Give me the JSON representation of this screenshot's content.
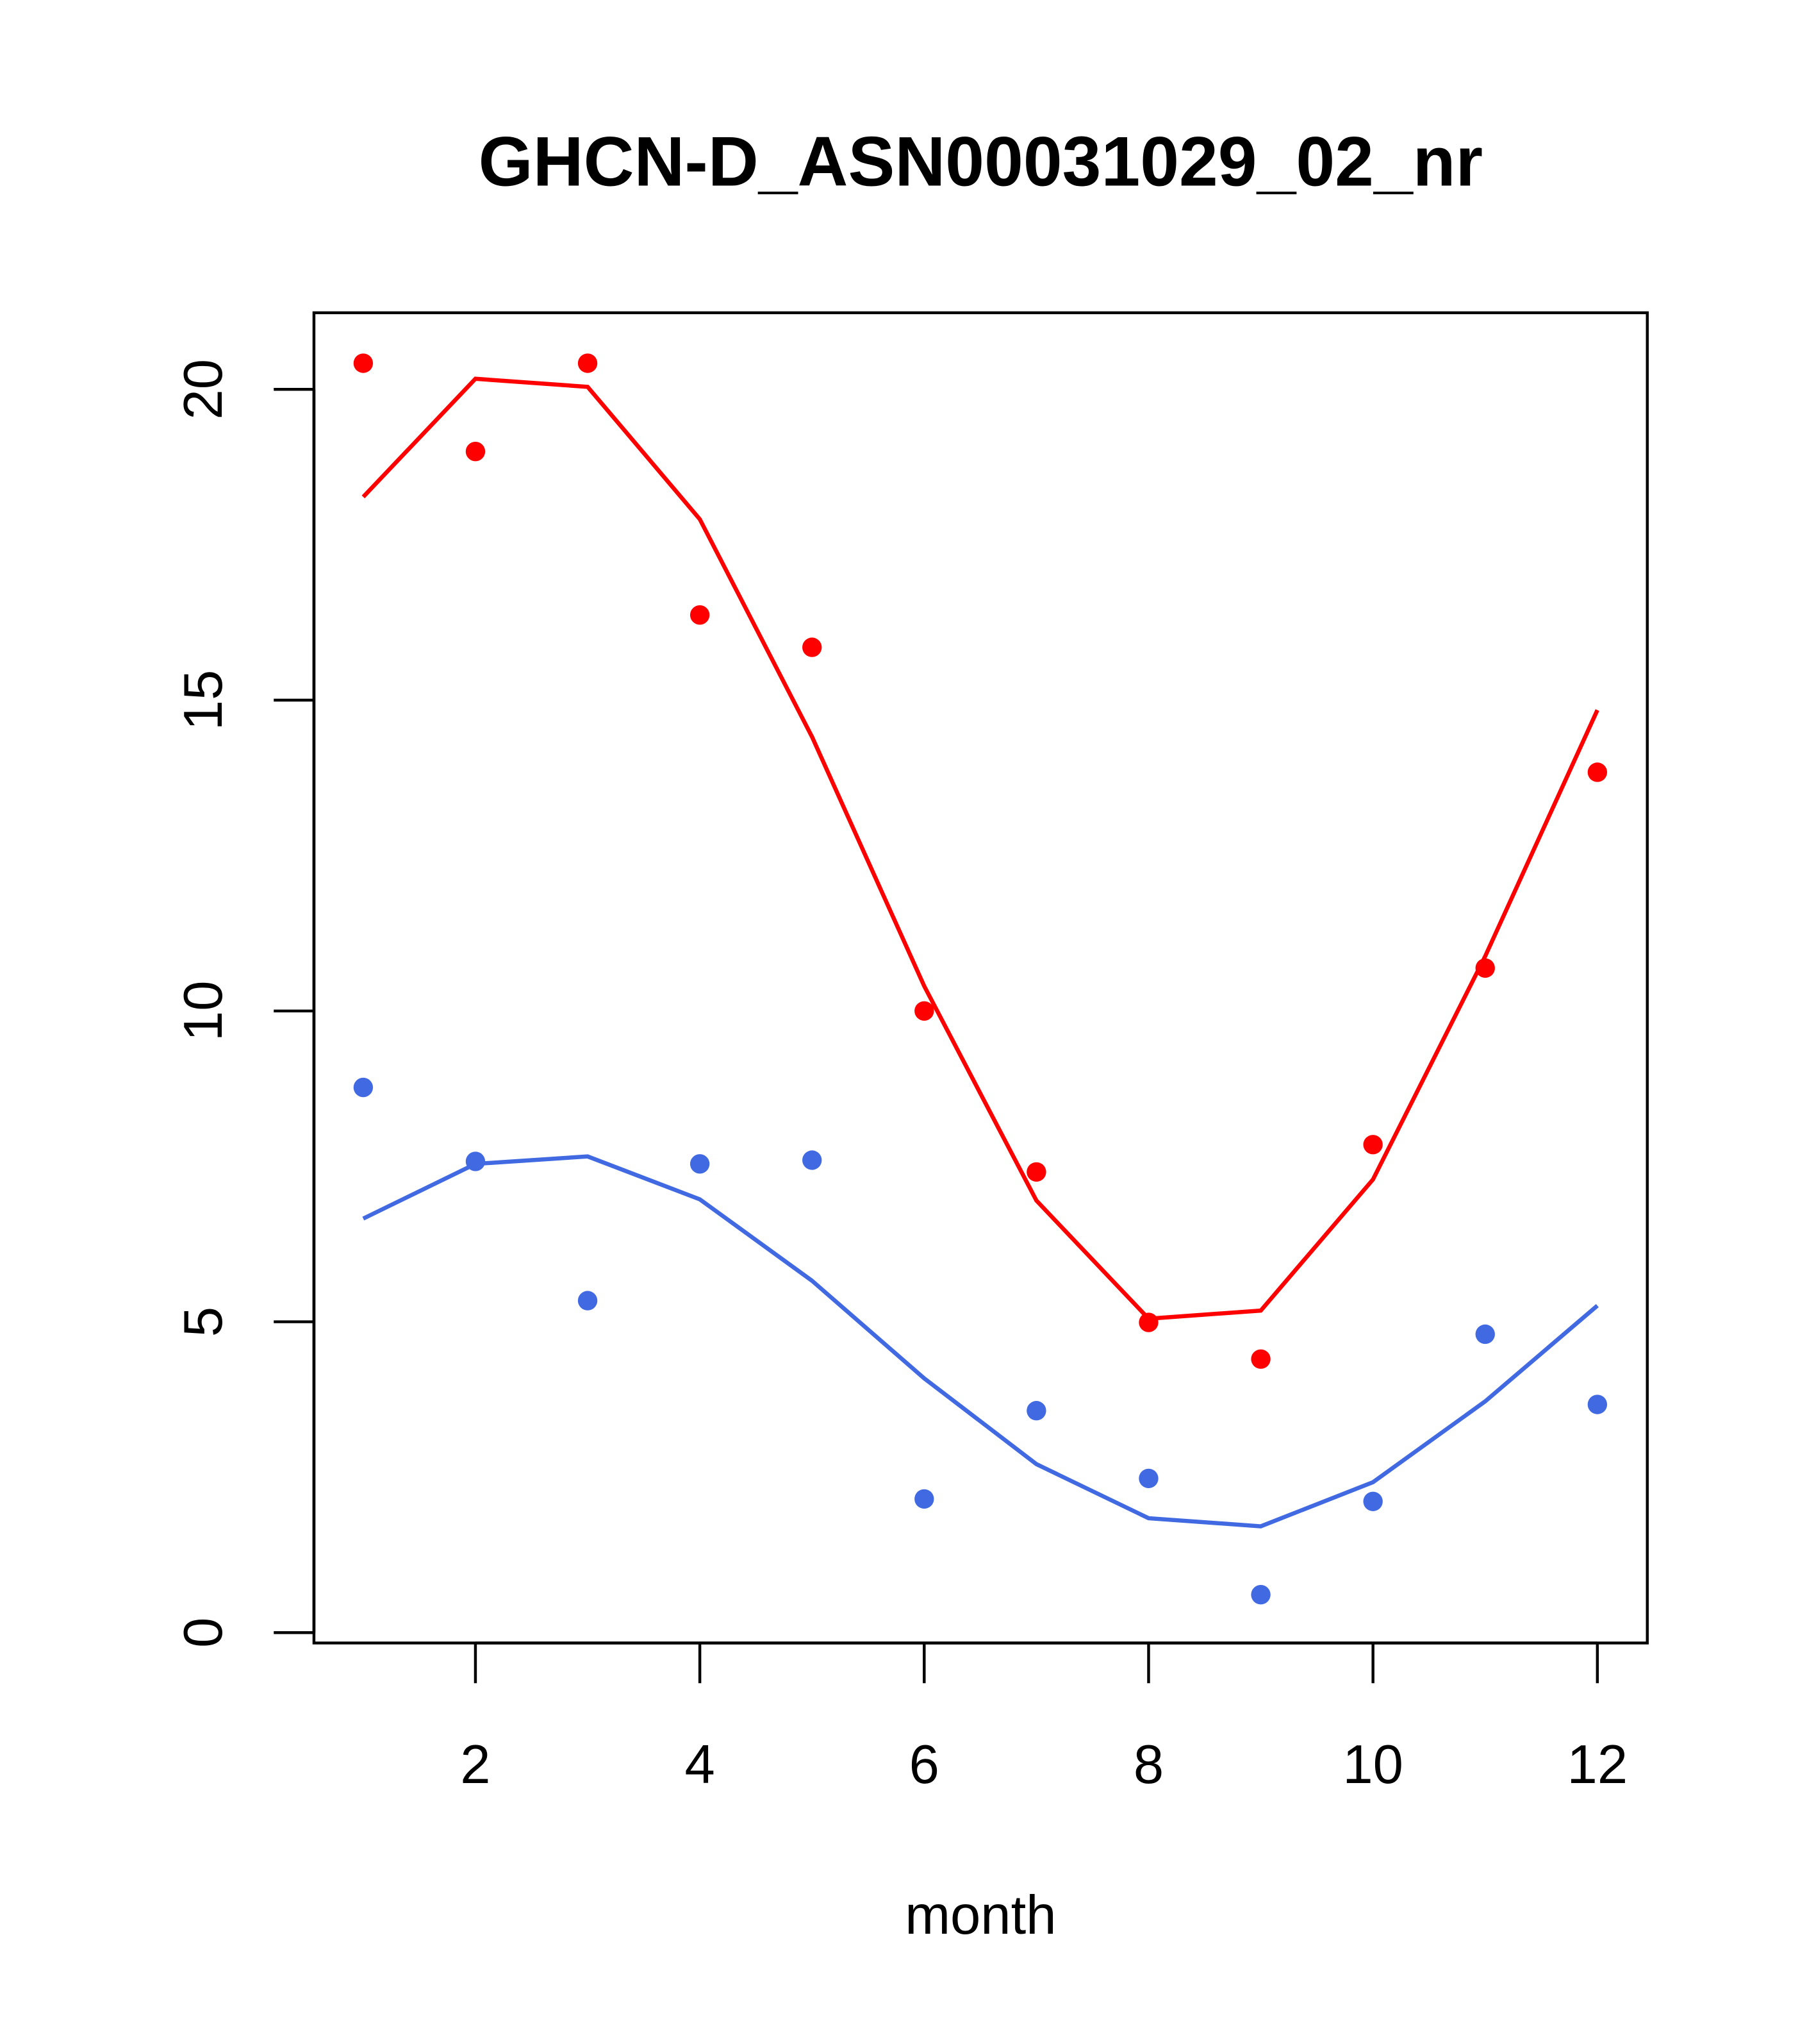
{
  "chart_data": {
    "type": "scatter",
    "title": "GHCN-D_ASN00031029_02_nr",
    "xlabel": "month",
    "ylabel": "",
    "xlim": [
      0.56,
      12.44
    ],
    "ylim": [
      -0.15,
      21.25
    ],
    "x_ticks": [
      2,
      4,
      6,
      8,
      10,
      12
    ],
    "y_ticks": [
      0,
      5,
      10,
      15,
      20
    ],
    "grid": false,
    "x": [
      1,
      2,
      3,
      4,
      5,
      6,
      7,
      8,
      9,
      10,
      11,
      12
    ],
    "series": [
      {
        "name": "red points",
        "kind": "points",
        "color": "#ff0000",
        "values": [
          20.42,
          19.0,
          20.42,
          16.37,
          15.85,
          10.0,
          7.41,
          4.99,
          4.4,
          7.85,
          10.69,
          13.84
        ]
      },
      {
        "name": "red fit",
        "kind": "line",
        "color": "#ff0000",
        "values": [
          18.27,
          20.17,
          20.04,
          17.91,
          14.41,
          10.4,
          6.95,
          5.05,
          5.18,
          7.29,
          10.88,
          14.84
        ]
      },
      {
        "name": "blue points",
        "kind": "points",
        "color": "#4169e1",
        "values": [
          8.77,
          7.58,
          5.34,
          7.54,
          7.6,
          2.15,
          3.57,
          2.48,
          0.61,
          2.11,
          4.8,
          3.67
        ]
      },
      {
        "name": "blue fit",
        "kind": "line",
        "color": "#4169e1",
        "values": [
          6.66,
          7.54,
          7.66,
          6.97,
          5.66,
          4.09,
          2.71,
          1.84,
          1.71,
          2.42,
          3.72,
          5.26
        ]
      }
    ]
  }
}
